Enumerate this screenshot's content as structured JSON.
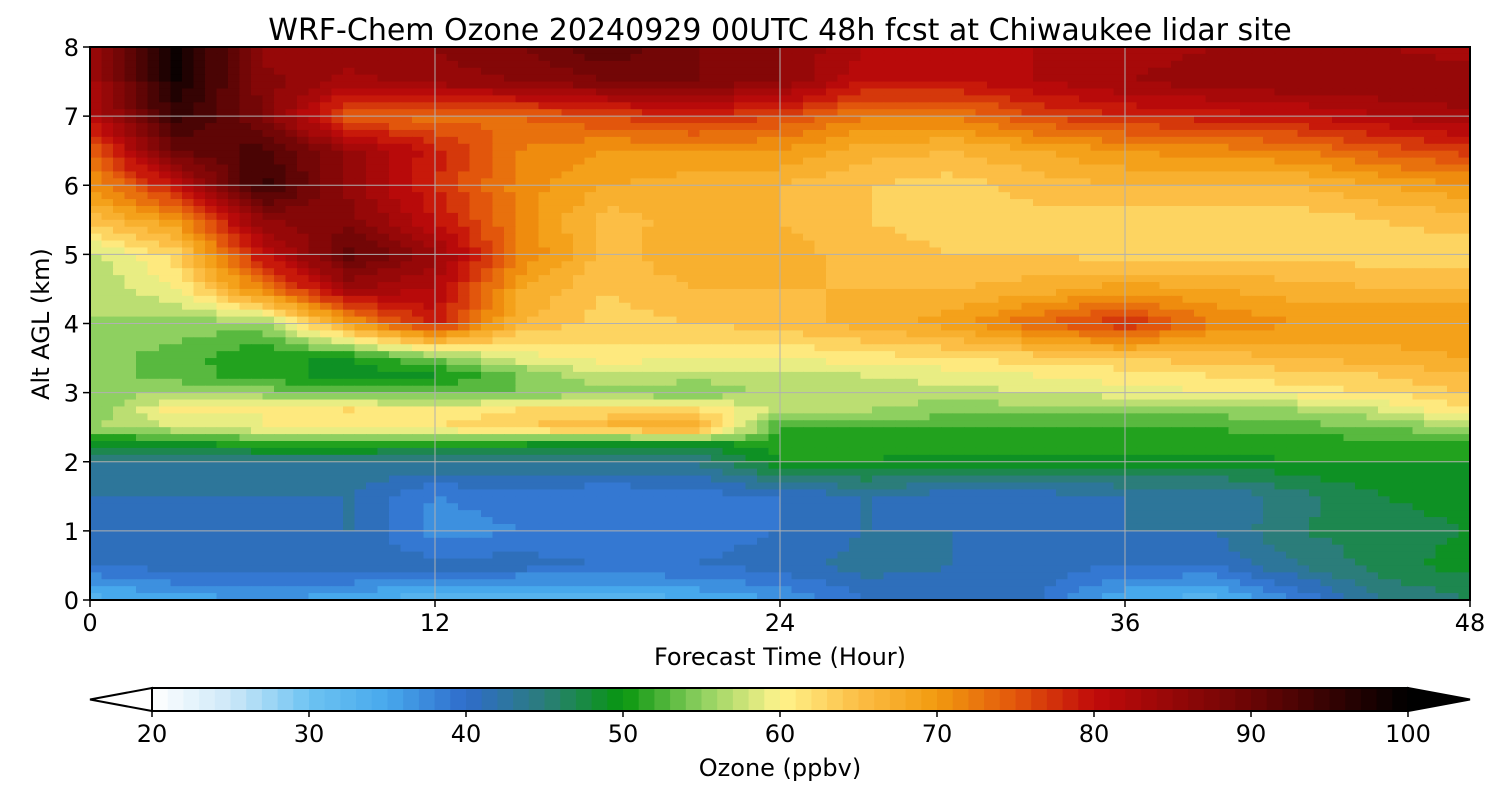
{
  "chart_data": {
    "type": "heatmap",
    "title": "WRF-Chem Ozone  20240929 00UTC 48h fcst at Chiwaukee lidar site",
    "xlabel": "Forecast Time (Hour)",
    "ylabel": "Alt AGL (km)",
    "xlim": [
      0,
      48
    ],
    "ylim": [
      0,
      8
    ],
    "xticks": [
      0,
      12,
      24,
      36,
      48
    ],
    "yticks": [
      0,
      1,
      2,
      3,
      4,
      5,
      6,
      7,
      8
    ],
    "grid": true,
    "hours": [
      0,
      3,
      6,
      9,
      12,
      15,
      18,
      21,
      24,
      27,
      30,
      33,
      36,
      39,
      42,
      45,
      48
    ],
    "altitudes_km": [
      0,
      0.5,
      1,
      1.5,
      2,
      2.25,
      2.5,
      2.75,
      3,
      3.25,
      3.5,
      4,
      4.5,
      5,
      5.5,
      6,
      6.5,
      7,
      7.5,
      8
    ],
    "ozone_ppbv": [
      [
        33,
        35,
        36,
        35,
        32,
        31,
        32,
        34,
        36,
        40,
        41,
        40,
        34,
        33,
        38,
        44,
        46
      ],
      [
        40,
        41,
        41,
        41,
        41,
        41,
        40,
        40,
        41,
        43,
        42,
        41,
        40,
        40,
        44,
        47,
        49
      ],
      [
        40,
        41,
        41,
        42,
        37,
        38,
        38,
        39,
        40,
        42,
        42,
        42,
        42,
        42,
        46,
        47,
        48
      ],
      [
        42,
        42,
        42,
        42,
        38,
        39,
        38,
        39,
        40,
        42,
        41,
        41,
        42,
        42,
        45,
        48,
        49
      ],
      [
        44,
        44,
        44,
        44,
        44,
        44,
        44,
        44,
        50,
        50,
        49,
        49,
        49,
        49,
        50,
        50,
        50
      ],
      [
        48,
        49,
        51,
        51,
        50,
        50,
        48,
        49,
        51,
        51,
        51,
        51,
        51,
        51,
        51,
        51,
        51
      ],
      [
        56,
        58,
        60,
        60,
        62,
        64,
        67,
        69,
        52,
        52,
        52,
        52,
        52,
        52,
        53,
        54,
        56
      ],
      [
        54,
        61,
        60,
        62,
        60,
        62,
        62,
        62,
        57,
        56,
        55,
        55,
        55,
        55,
        56,
        58,
        62
      ],
      [
        55,
        56,
        55,
        53,
        53,
        54,
        55,
        54,
        57,
        57,
        57,
        58,
        59,
        60,
        61,
        62,
        64
      ],
      [
        55,
        53,
        51,
        49,
        50,
        54,
        58,
        57,
        57,
        58,
        59,
        60,
        61,
        62,
        63,
        64,
        66
      ],
      [
        55,
        53,
        50,
        50,
        54,
        59,
        61,
        60,
        60,
        61,
        62,
        63,
        64,
        65,
        66,
        67,
        68
      ],
      [
        56,
        55,
        55,
        69,
        79,
        66,
        63,
        64,
        65,
        67,
        69,
        74,
        78,
        72,
        70,
        70,
        70
      ],
      [
        56,
        60,
        72,
        84,
        82,
        68,
        64,
        66,
        66,
        66,
        66,
        67,
        69,
        68,
        67,
        66,
        66
      ],
      [
        57,
        63,
        80,
        91,
        85,
        72,
        65,
        68,
        67,
        65,
        64,
        64,
        63,
        63,
        63,
        63,
        63
      ],
      [
        65,
        70,
        86,
        87,
        80,
        71,
        65,
        67,
        66,
        64,
        63,
        63,
        63,
        63,
        63,
        64,
        65
      ],
      [
        70,
        80,
        95,
        85,
        78,
        71,
        68,
        67,
        66,
        64,
        63,
        65,
        66,
        66,
        66,
        68,
        70
      ],
      [
        74,
        90,
        93,
        85,
        79,
        72,
        70,
        70,
        70,
        67,
        66,
        68,
        70,
        71,
        72,
        75,
        77
      ],
      [
        81,
        95,
        88,
        74,
        73,
        74,
        76,
        78,
        76,
        72,
        72,
        76,
        78,
        79,
        80,
        82,
        84
      ],
      [
        83,
        98,
        87,
        83,
        85,
        86,
        88,
        88,
        86,
        80,
        80,
        82,
        84,
        85,
        86,
        86,
        85
      ],
      [
        84,
        100,
        85,
        86,
        86,
        88,
        92,
        88,
        86,
        82,
        80,
        82,
        83,
        84,
        85,
        84,
        83
      ]
    ],
    "colorbar": {
      "label": "Ozone  (ppbv)",
      "min": 20,
      "max": 100,
      "extend": "both",
      "ticks": [
        20,
        30,
        40,
        50,
        60,
        70,
        80,
        90,
        100
      ],
      "color_stops": [
        {
          "value": 20,
          "color": "#ffffff"
        },
        {
          "value": 25,
          "color": "#cde8f8"
        },
        {
          "value": 30,
          "color": "#6dc3f2"
        },
        {
          "value": 35,
          "color": "#47a8ec"
        },
        {
          "value": 40,
          "color": "#2f6ccb"
        },
        {
          "value": 45,
          "color": "#2b7d7a"
        },
        {
          "value": 50,
          "color": "#07960e"
        },
        {
          "value": 55,
          "color": "#8ed060"
        },
        {
          "value": 60,
          "color": "#fff48c"
        },
        {
          "value": 65,
          "color": "#fcbe45"
        },
        {
          "value": 70,
          "color": "#f29a0f"
        },
        {
          "value": 75,
          "color": "#e2560c"
        },
        {
          "value": 80,
          "color": "#c10a0a"
        },
        {
          "value": 90,
          "color": "#6a0505"
        },
        {
          "value": 100,
          "color": "#000000"
        }
      ]
    }
  }
}
